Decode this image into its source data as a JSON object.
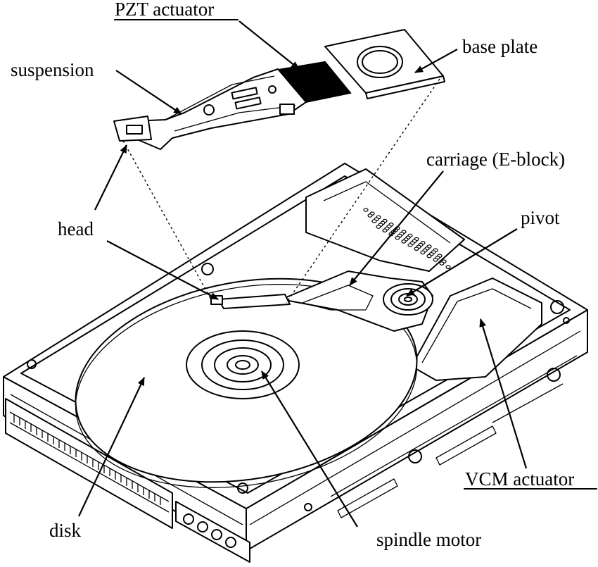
{
  "labels": {
    "pzt_actuator": "PZT actuator",
    "base_plate": "base plate",
    "suspension": "suspension",
    "carriage": "carriage (E-block)",
    "pivot": "pivot",
    "head": "head",
    "disk": "disk",
    "spindle_motor": "spindle motor",
    "vcm_actuator": "VCM actuator"
  },
  "colors": {
    "ink": "#000000",
    "background": "#ffffff"
  }
}
